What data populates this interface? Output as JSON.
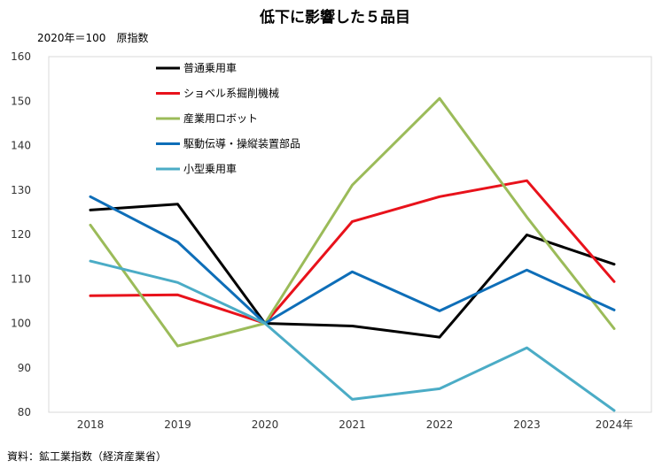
{
  "chart_data": {
    "type": "line",
    "title": "低下に影響した５品目",
    "unit_label": "2020年＝100　原指数",
    "source": "資料：鉱工業指数（経済産業省）",
    "x": [
      "2018",
      "2019",
      "2020",
      "2021",
      "2022",
      "2023",
      "2024年"
    ],
    "ylim": [
      80,
      160
    ],
    "yticks": [
      80,
      90,
      100,
      110,
      120,
      130,
      140,
      150,
      160
    ],
    "grid": false,
    "legend_position": "top-left",
    "series": [
      {
        "name": "普通乗用車",
        "color": "#000000",
        "values": [
          125.5,
          126.8,
          100.0,
          99.4,
          96.9,
          119.9,
          113.3
        ]
      },
      {
        "name": "ショベル系掘削機械",
        "color": "#e8121b",
        "values": [
          106.2,
          106.4,
          100.0,
          122.9,
          128.5,
          132.1,
          109.4
        ]
      },
      {
        "name": "産業用ロボット",
        "color": "#9bbb59",
        "values": [
          122.1,
          94.9,
          100.0,
          131.1,
          150.6,
          123.9,
          98.8
        ]
      },
      {
        "name": "駆動伝導・操縦装置部品",
        "color": "#0e6eb8",
        "values": [
          128.5,
          118.3,
          100.0,
          111.6,
          102.8,
          112.0,
          103.0
        ]
      },
      {
        "name": "小型乗用車",
        "color": "#4bacc6",
        "values": [
          114.0,
          109.2,
          100.0,
          82.9,
          85.3,
          94.5,
          80.4
        ]
      }
    ]
  }
}
